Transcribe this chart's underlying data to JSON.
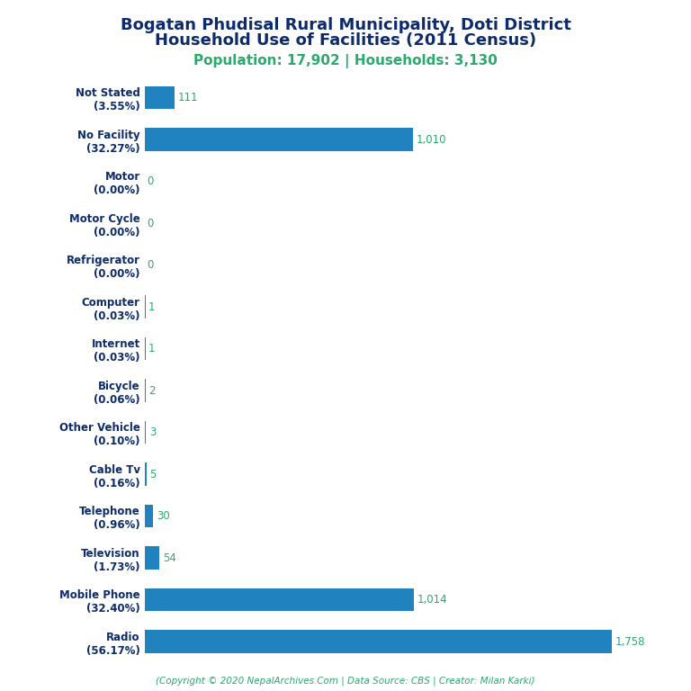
{
  "title_line1": "Bogatan Phudisal Rural Municipality, Doti District",
  "title_line2": "Household Use of Facilities (2011 Census)",
  "subtitle": "Population: 17,902 | Households: 3,130",
  "copyright": "(Copyright © 2020 NepalArchives.Com | Data Source: CBS | Creator: Milan Karki)",
  "categories": [
    "Not Stated\n(3.55%)",
    "No Facility\n(32.27%)",
    "Motor\n(0.00%)",
    "Motor Cycle\n(0.00%)",
    "Refrigerator\n(0.00%)",
    "Computer\n(0.03%)",
    "Internet\n(0.03%)",
    "Bicycle\n(0.06%)",
    "Other Vehicle\n(0.10%)",
    "Cable Tv\n(0.16%)",
    "Telephone\n(0.96%)",
    "Television\n(1.73%)",
    "Mobile Phone\n(32.40%)",
    "Radio\n(56.17%)"
  ],
  "values": [
    111,
    1010,
    0,
    0,
    0,
    1,
    1,
    2,
    3,
    5,
    30,
    54,
    1014,
    1758
  ],
  "value_labels": [
    "111",
    "1,010",
    "0",
    "0",
    "0",
    "1",
    "1",
    "2",
    "3",
    "5",
    "30",
    "54",
    "1,014",
    "1,758"
  ],
  "bar_color": "#2182c0",
  "value_color": "#2aaa6e",
  "title_color": "#0d2b6b",
  "subtitle_color": "#2aaa6e",
  "copyright_color": "#2aaa6e",
  "bg_color": "#ffffff",
  "xlim": [
    0,
    1900
  ],
  "bar_height": 0.55,
  "figsize": [
    7.68,
    7.68
  ],
  "dpi": 100
}
